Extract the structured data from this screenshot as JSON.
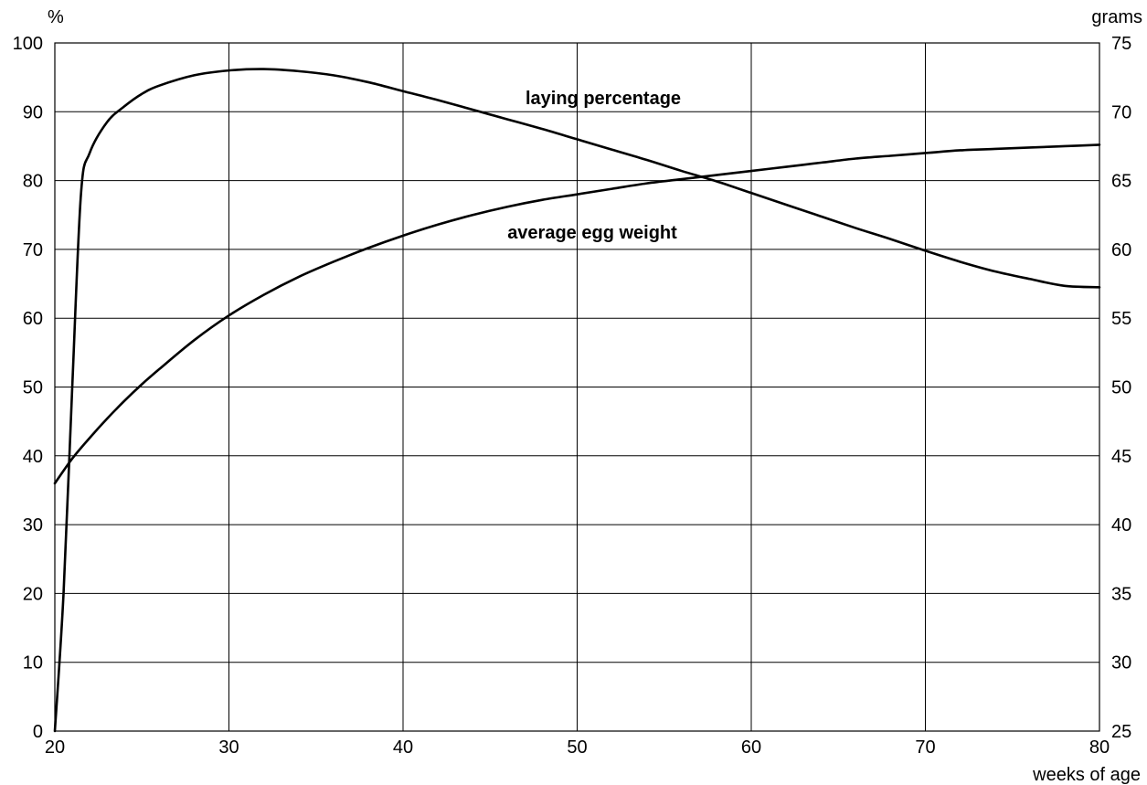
{
  "chart_data": {
    "type": "line",
    "xlabel": "weeks of age",
    "ylabel_left": "%",
    "ylabel_right": "grams",
    "xlim": [
      20,
      80
    ],
    "ylim_left": [
      0,
      100
    ],
    "ylim_right": [
      25,
      75
    ],
    "x_ticks": [
      "20",
      "30",
      "40",
      "50",
      "60",
      "70",
      "80"
    ],
    "y_ticks_left": [
      "0",
      "10",
      "20",
      "30",
      "40",
      "50",
      "60",
      "70",
      "80",
      "90",
      "100"
    ],
    "y_ticks_right": [
      "25",
      "30",
      "35",
      "40",
      "45",
      "50",
      "55",
      "60",
      "65",
      "70",
      "75"
    ],
    "grid": true,
    "series": [
      {
        "name": "laying percentage",
        "axis": "left",
        "x": [
          20,
          20.5,
          21,
          21.5,
          22,
          23,
          24,
          25,
          26,
          28,
          30,
          32,
          34,
          36,
          38,
          40,
          42,
          44,
          46,
          48,
          50,
          52,
          54,
          56,
          58,
          60,
          62,
          64,
          66,
          68,
          70,
          72,
          74,
          76,
          78,
          80
        ],
        "values": [
          0,
          20,
          50,
          78,
          84,
          88.5,
          90.8,
          92.6,
          93.8,
          95.3,
          96,
          96.2,
          95.9,
          95.3,
          94.3,
          93,
          91.7,
          90.3,
          88.9,
          87.5,
          86,
          84.5,
          83,
          81.4,
          79.9,
          78.2,
          76.5,
          74.8,
          73.1,
          71.5,
          69.8,
          68.2,
          66.8,
          65.7,
          64.7,
          64.5
        ]
      },
      {
        "name": "average egg weight",
        "axis": "right",
        "x": [
          20,
          21,
          22,
          23,
          24,
          25,
          26,
          28,
          30,
          32,
          34,
          36,
          38,
          40,
          42,
          44,
          46,
          48,
          50,
          52,
          54,
          56,
          58,
          60,
          62,
          64,
          66,
          68,
          70,
          72,
          74,
          76,
          78,
          80
        ],
        "values": [
          43,
          44.8,
          46.3,
          47.7,
          49,
          50.2,
          51.3,
          53.4,
          55.2,
          56.7,
          58,
          59.1,
          60.1,
          61,
          61.8,
          62.5,
          63.1,
          63.6,
          64,
          64.4,
          64.8,
          65.1,
          65.4,
          65.7,
          66,
          66.3,
          66.6,
          66.8,
          67,
          67.2,
          67.3,
          67.4,
          67.5,
          67.6
        ]
      }
    ]
  }
}
